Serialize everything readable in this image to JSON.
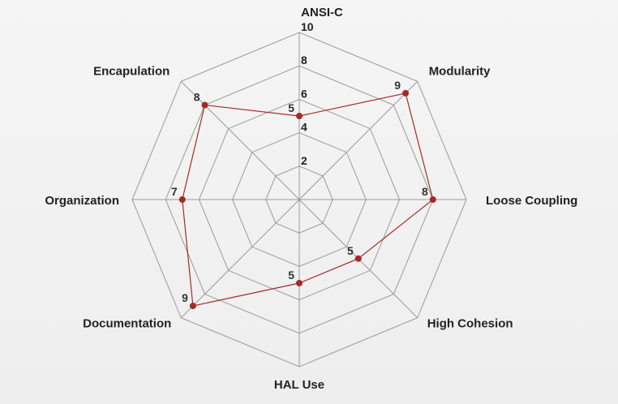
{
  "chart_data": {
    "type": "radar",
    "title": "",
    "categories": [
      "ANSI-C",
      "Modularity",
      "Loose Coupling",
      "High Cohesion",
      "HAL Use",
      "Documentation",
      "Organization",
      "Encapulation"
    ],
    "series": [
      {
        "values": [
          5,
          9,
          8,
          5,
          5,
          9,
          7,
          8
        ],
        "color": "#a52a2a"
      }
    ],
    "rlim": [
      0,
      10
    ],
    "ticks": [
      2,
      4,
      6,
      8,
      10
    ],
    "tick_labels": [
      "2",
      "4",
      "6",
      "8",
      "10"
    ],
    "grid": true,
    "grid_color": "#9a9a9a",
    "legend": "none"
  }
}
